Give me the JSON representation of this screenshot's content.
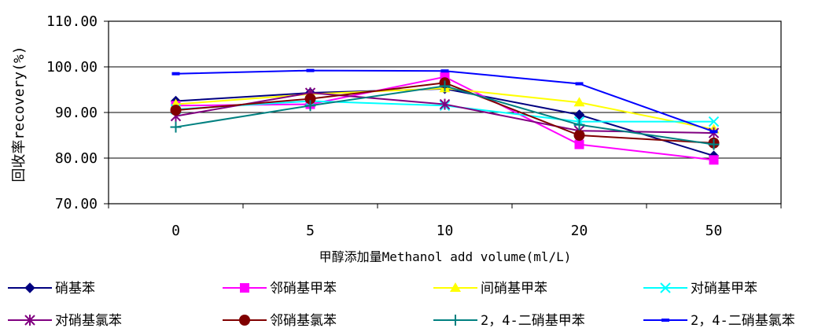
{
  "chart_data": {
    "type": "line",
    "title": "",
    "xlabel": "甲醇添加量Methanol add volume(ml/L)",
    "ylabel": "回收率recovery(%)",
    "categories": [
      "0",
      "5",
      "10",
      "20",
      "50"
    ],
    "ylim": [
      70,
      110
    ],
    "yticks": [
      "70.00",
      "80.00",
      "90.00",
      "100.00",
      "110.00"
    ],
    "grid": true,
    "legend_position": "bottom",
    "series": [
      {
        "name": "硝基苯",
        "color": "#000080",
        "marker": "diamond",
        "values": [
          92.5,
          94.3,
          95.2,
          89.5,
          80.5
        ]
      },
      {
        "name": "邻硝基甲苯",
        "color": "#ff00ff",
        "marker": "square",
        "values": [
          91.5,
          91.8,
          97.8,
          83.0,
          79.6
        ]
      },
      {
        "name": "间硝基甲苯",
        "color": "#ffff00",
        "marker": "triangle",
        "values": [
          91.8,
          94.0,
          95.3,
          92.2,
          86.3
        ]
      },
      {
        "name": "对硝基甲苯",
        "color": "#00ffff",
        "marker": "x",
        "values": [
          90.7,
          92.5,
          91.5,
          88.0,
          88.0
        ]
      },
      {
        "name": "对硝基氯苯",
        "color": "#800080",
        "marker": "star",
        "values": [
          89.2,
          94.3,
          91.8,
          86.0,
          85.5
        ]
      },
      {
        "name": "邻硝基氯苯",
        "color": "#800000",
        "marker": "circle",
        "values": [
          90.5,
          93.0,
          96.5,
          85.0,
          83.3
        ]
      },
      {
        "name": "2，4-二硝基甲苯",
        "color": "#008080",
        "marker": "plus",
        "values": [
          86.8,
          91.5,
          95.8,
          87.3,
          83.0
        ]
      },
      {
        "name": "2，4-二硝基氯苯",
        "color": "#0000ff",
        "marker": "dash",
        "values": [
          98.5,
          99.2,
          99.1,
          96.3,
          85.8
        ]
      }
    ]
  }
}
